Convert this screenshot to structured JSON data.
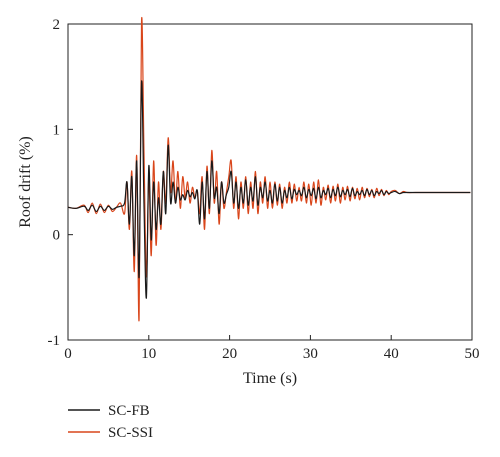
{
  "chart_data": {
    "type": "line",
    "xlabel": "Time (s)",
    "ylabel": "Roof drift (%)",
    "xlim": [
      0,
      50
    ],
    "ylim": [
      -1,
      2
    ],
    "xticks": [
      0,
      10,
      20,
      30,
      40,
      50
    ],
    "yticks": [
      -1,
      0,
      1,
      2
    ],
    "grid": false,
    "legend_position": "bottom-left",
    "series": [
      {
        "name": "SC-FB",
        "color": "#1a1a1a",
        "x": [
          0,
          1,
          2,
          2.5,
          3,
          3.5,
          4,
          4.5,
          5,
          5.5,
          6,
          6.5,
          7,
          7.3,
          7.6,
          7.9,
          8.2,
          8.5,
          8.8,
          9.1,
          9.4,
          9.7,
          10,
          10.3,
          10.6,
          10.9,
          11.2,
          11.5,
          11.8,
          12.1,
          12.4,
          12.7,
          13,
          13.3,
          13.6,
          13.9,
          14.2,
          14.5,
          14.8,
          15.1,
          15.4,
          15.7,
          16,
          16.3,
          16.6,
          16.9,
          17.2,
          17.5,
          17.8,
          18.1,
          18.4,
          18.7,
          19,
          19.3,
          19.6,
          19.9,
          20.2,
          20.5,
          20.8,
          21.1,
          21.4,
          21.7,
          22,
          22.3,
          22.6,
          22.9,
          23.2,
          23.5,
          23.8,
          24.1,
          24.4,
          24.7,
          25,
          25.3,
          25.6,
          25.9,
          26.2,
          26.5,
          26.8,
          27.1,
          27.4,
          27.7,
          28,
          28.3,
          28.6,
          28.9,
          29.2,
          29.5,
          29.8,
          30.1,
          30.4,
          30.7,
          31,
          31.3,
          31.6,
          31.9,
          32.2,
          32.5,
          32.8,
          33.1,
          33.4,
          33.7,
          34,
          34.3,
          34.6,
          34.9,
          35.2,
          35.5,
          35.8,
          36.1,
          36.4,
          36.7,
          37,
          37.3,
          37.6,
          37.9,
          38.2,
          38.5,
          38.8,
          39.1,
          39.4,
          39.7,
          40,
          40.5,
          41,
          41.5,
          42,
          43,
          44,
          45,
          46,
          47,
          48,
          49,
          49.8
        ],
        "y": [
          0.26,
          0.25,
          0.27,
          0.23,
          0.28,
          0.22,
          0.27,
          0.23,
          0.27,
          0.24,
          0.26,
          0.27,
          0.3,
          0.5,
          0.1,
          0.55,
          -0.2,
          0.7,
          -0.4,
          1.45,
          0.3,
          -0.6,
          0.65,
          -0.05,
          0.5,
          0.05,
          0.35,
          0.1,
          0.6,
          0.2,
          0.85,
          0.3,
          0.5,
          0.3,
          0.45,
          0.33,
          0.38,
          0.33,
          0.42,
          0.36,
          0.4,
          0.34,
          0.42,
          0.1,
          0.5,
          0.15,
          0.6,
          0.25,
          0.7,
          0.35,
          0.45,
          0.2,
          0.5,
          0.3,
          0.38,
          0.45,
          0.6,
          0.3,
          0.5,
          0.25,
          0.45,
          0.3,
          0.52,
          0.28,
          0.45,
          0.32,
          0.55,
          0.28,
          0.45,
          0.35,
          0.5,
          0.32,
          0.42,
          0.3,
          0.48,
          0.32,
          0.45,
          0.3,
          0.42,
          0.35,
          0.45,
          0.34,
          0.43,
          0.38,
          0.42,
          0.37,
          0.45,
          0.35,
          0.43,
          0.37,
          0.44,
          0.34,
          0.45,
          0.35,
          0.42,
          0.38,
          0.44,
          0.35,
          0.43,
          0.37,
          0.45,
          0.36,
          0.42,
          0.38,
          0.43,
          0.36,
          0.44,
          0.37,
          0.41,
          0.38,
          0.42,
          0.37,
          0.43,
          0.38,
          0.42,
          0.37,
          0.41,
          0.39,
          0.42,
          0.38,
          0.41,
          0.39,
          0.4,
          0.41,
          0.39,
          0.4,
          0.4,
          0.4,
          0.4,
          0.4,
          0.4,
          0.4,
          0.4,
          0.4,
          0.4
        ]
      },
      {
        "name": "SC-SSI",
        "color": "#d9461b",
        "x": [
          0,
          1,
          2,
          2.5,
          3,
          3.5,
          4,
          4.5,
          5,
          5.5,
          6,
          6.5,
          7,
          7.3,
          7.6,
          7.9,
          8.2,
          8.5,
          8.8,
          9.1,
          9.4,
          9.7,
          10,
          10.3,
          10.6,
          10.9,
          11.2,
          11.5,
          11.8,
          12.1,
          12.4,
          12.7,
          13,
          13.3,
          13.6,
          13.9,
          14.2,
          14.5,
          14.8,
          15.1,
          15.4,
          15.7,
          16,
          16.3,
          16.6,
          16.9,
          17.2,
          17.5,
          17.8,
          18.1,
          18.4,
          18.7,
          19,
          19.3,
          19.6,
          19.9,
          20.2,
          20.5,
          20.8,
          21.1,
          21.4,
          21.7,
          22,
          22.3,
          22.6,
          22.9,
          23.2,
          23.5,
          23.8,
          24.1,
          24.4,
          24.7,
          25,
          25.3,
          25.6,
          25.9,
          26.2,
          26.5,
          26.8,
          27.1,
          27.4,
          27.7,
          28,
          28.3,
          28.6,
          28.9,
          29.2,
          29.5,
          29.8,
          30.1,
          30.4,
          30.7,
          31,
          31.3,
          31.6,
          31.9,
          32.2,
          32.5,
          32.8,
          33.1,
          33.4,
          33.7,
          34,
          34.3,
          34.6,
          34.9,
          35.2,
          35.5,
          35.8,
          36.1,
          36.4,
          36.7,
          37,
          37.3,
          37.6,
          37.9,
          38.2,
          38.5,
          38.8,
          39.1,
          39.4,
          39.7,
          40,
          40.5,
          41,
          41.5,
          42,
          43,
          44,
          45,
          46,
          47,
          48,
          49,
          49.8
        ],
        "y": [
          0.26,
          0.25,
          0.28,
          0.21,
          0.3,
          0.2,
          0.29,
          0.21,
          0.28,
          0.22,
          0.26,
          0.3,
          0.2,
          0.5,
          0.05,
          0.6,
          -0.35,
          0.75,
          -0.8,
          2.02,
          0.8,
          -0.4,
          0.55,
          -0.2,
          0.7,
          -0.1,
          0.5,
          0.05,
          0.6,
          0.3,
          0.92,
          0.4,
          0.7,
          0.3,
          0.6,
          0.25,
          0.55,
          0.35,
          0.5,
          0.3,
          0.45,
          0.35,
          0.42,
          0.2,
          0.55,
          0.05,
          0.65,
          0.2,
          0.8,
          0.3,
          0.6,
          0.1,
          0.5,
          0.25,
          0.4,
          0.55,
          0.7,
          0.25,
          0.55,
          0.15,
          0.5,
          0.25,
          0.55,
          0.2,
          0.5,
          0.25,
          0.6,
          0.2,
          0.5,
          0.3,
          0.55,
          0.25,
          0.5,
          0.25,
          0.5,
          0.28,
          0.48,
          0.25,
          0.45,
          0.3,
          0.5,
          0.3,
          0.48,
          0.32,
          0.45,
          0.32,
          0.5,
          0.3,
          0.48,
          0.28,
          0.5,
          0.3,
          0.52,
          0.28,
          0.45,
          0.33,
          0.47,
          0.3,
          0.46,
          0.32,
          0.48,
          0.3,
          0.45,
          0.33,
          0.46,
          0.32,
          0.45,
          0.34,
          0.44,
          0.33,
          0.45,
          0.35,
          0.44,
          0.36,
          0.43,
          0.35,
          0.44,
          0.37,
          0.43,
          0.37,
          0.42,
          0.38,
          0.41,
          0.42,
          0.39,
          0.41,
          0.4,
          0.4,
          0.4,
          0.4,
          0.4,
          0.4,
          0.4,
          0.4,
          0.4
        ]
      }
    ]
  }
}
